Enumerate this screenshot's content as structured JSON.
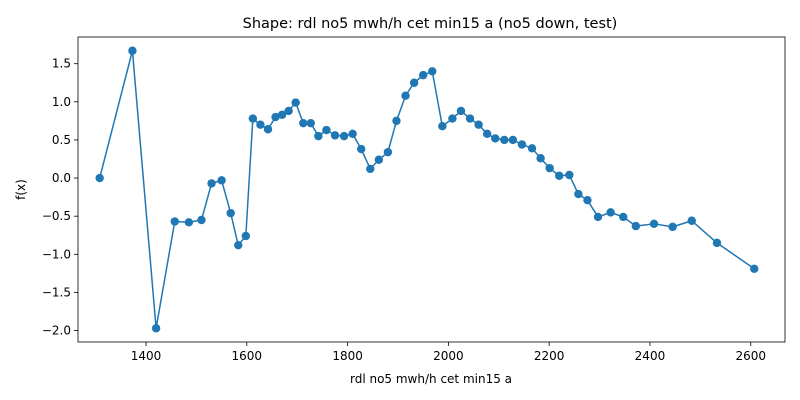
{
  "chart_data": {
    "type": "line",
    "title": "Shape: rdl no5 mwh/h cet min15 a (no5 down, test)",
    "xlabel": "rdl no5 mwh/h cet min15 a",
    "ylabel": "f(x)",
    "xlim": [
      1265,
      2668
    ],
    "ylim": [
      -2.15,
      1.85
    ],
    "x_ticks": [
      1400,
      1600,
      1800,
      2000,
      2200,
      2400,
      2600
    ],
    "y_ticks": [
      1.5,
      1.0,
      0.5,
      0.0,
      -0.5,
      -1.0,
      -1.5,
      -2.0
    ],
    "x_tick_labels": [
      "1400",
      "1600",
      "1800",
      "2000",
      "2200",
      "2400",
      "2600"
    ],
    "y_tick_labels": [
      "1.5",
      "1.0",
      "0.5",
      "0.0",
      "−0.5",
      "−1.0",
      "−1.5",
      "−2.0"
    ],
    "grid": false,
    "color": "#1f77b4",
    "marker": "circle",
    "series": [
      {
        "x": [
          1308,
          1373,
          1420,
          1457,
          1485,
          1510,
          1530,
          1550,
          1568,
          1583,
          1598,
          1612,
          1627,
          1642,
          1657,
          1670,
          1683,
          1697,
          1712,
          1727,
          1742,
          1758,
          1775,
          1793,
          1810,
          1827,
          1845,
          1862,
          1880,
          1897,
          1915,
          1932,
          1950,
          1968,
          1988,
          2008,
          2025,
          2043,
          2060,
          2077,
          2093,
          2111,
          2128,
          2146,
          2166,
          2183,
          2201,
          2220,
          2240,
          2258,
          2276,
          2297,
          2322,
          2347,
          2372,
          2408,
          2445,
          2483,
          2533,
          2607
        ],
        "y": [
          0.0,
          1.67,
          -1.97,
          -0.57,
          -0.58,
          -0.55,
          -0.07,
          -0.03,
          -0.46,
          -0.88,
          -0.76,
          0.78,
          0.7,
          0.64,
          0.8,
          0.83,
          0.88,
          0.99,
          0.72,
          0.72,
          0.55,
          0.63,
          0.56,
          0.55,
          0.58,
          0.38,
          0.12,
          0.24,
          0.34,
          0.75,
          1.08,
          1.25,
          1.35,
          1.4,
          0.68,
          0.78,
          0.88,
          0.78,
          0.7,
          0.58,
          0.52,
          0.5,
          0.5,
          0.44,
          0.39,
          0.26,
          0.13,
          0.03,
          0.04,
          -0.21,
          -0.29,
          -0.51,
          -0.45,
          -0.51,
          -0.63,
          -0.6,
          -0.64,
          -0.56,
          -0.85,
          -1.19
        ]
      }
    ]
  }
}
